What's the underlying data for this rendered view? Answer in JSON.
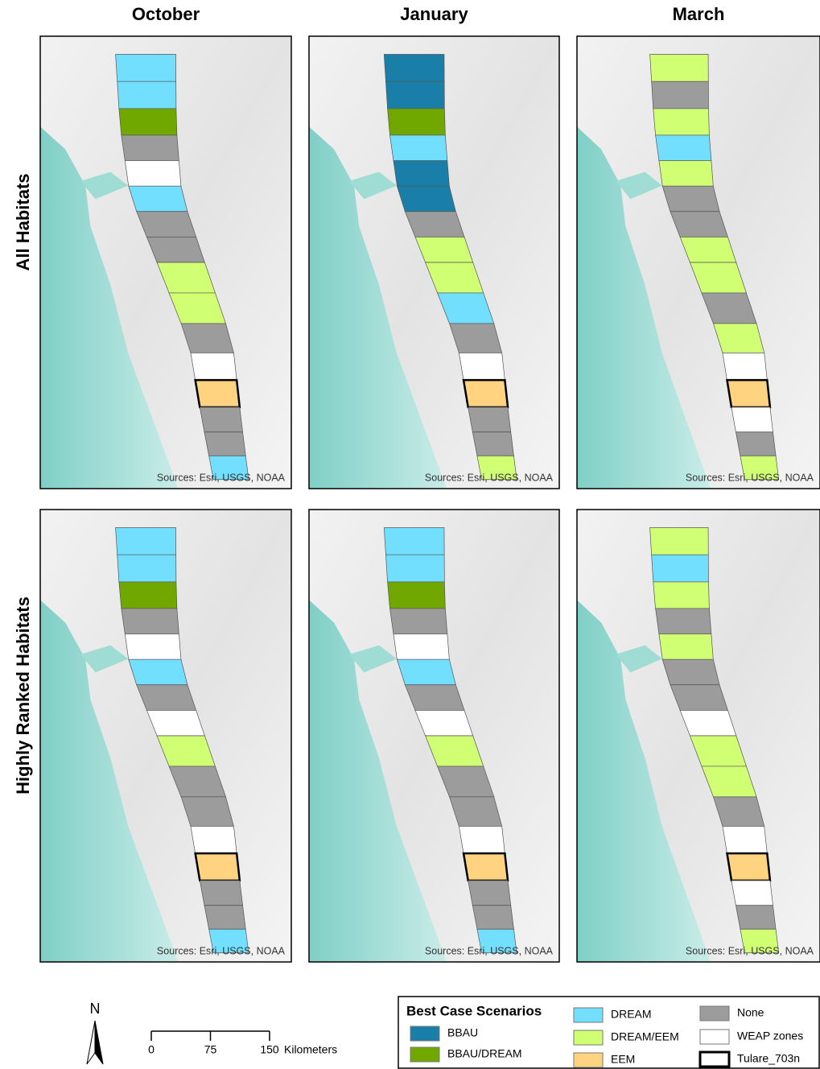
{
  "columns": [
    "October",
    "January",
    "March"
  ],
  "rows": [
    "All Habitats",
    "Highly Ranked Habitats"
  ],
  "source": "Sources: Esri, USGS, NOAA",
  "legend": {
    "title": "Best Case Scenarios",
    "items": [
      {
        "label": "BBAU",
        "color": "#1a7fa8"
      },
      {
        "label": "BBAU/DREAM",
        "color": "#70a800"
      },
      {
        "label": "DREAM",
        "color": "#73dfff"
      },
      {
        "label": "DREAM/EEM",
        "color": "#d1ff73"
      },
      {
        "label": "EEM",
        "color": "#ffd37f"
      },
      {
        "label": "None",
        "color": "#9c9c9c"
      },
      {
        "label": "WEAP zones",
        "color": "#ffffff"
      },
      {
        "label": "Tulare_703n",
        "color": "#ffffff"
      }
    ]
  },
  "scale_bar": {
    "ticks": [
      0,
      75,
      150
    ],
    "unit": "Kilometers"
  },
  "north": "N",
  "panels": [
    {
      "zones": [
        2,
        2,
        1,
        5,
        6,
        2,
        5,
        5,
        3,
        3,
        5,
        6,
        4,
        5,
        5,
        2
      ]
    },
    {
      "zones": [
        0,
        0,
        1,
        2,
        0,
        0,
        5,
        3,
        3,
        2,
        5,
        6,
        4,
        5,
        5,
        3
      ]
    },
    {
      "zones": [
        3,
        5,
        3,
        2,
        3,
        5,
        5,
        3,
        3,
        5,
        3,
        6,
        4,
        6,
        5,
        3
      ]
    },
    {
      "zones": [
        2,
        2,
        1,
        5,
        6,
        2,
        5,
        6,
        3,
        5,
        5,
        6,
        4,
        5,
        5,
        2
      ]
    },
    {
      "zones": [
        2,
        2,
        1,
        5,
        6,
        2,
        5,
        6,
        3,
        5,
        5,
        6,
        4,
        5,
        5,
        2
      ]
    },
    {
      "zones": [
        3,
        2,
        3,
        5,
        3,
        5,
        5,
        6,
        3,
        3,
        5,
        6,
        4,
        6,
        5,
        3
      ]
    }
  ]
}
